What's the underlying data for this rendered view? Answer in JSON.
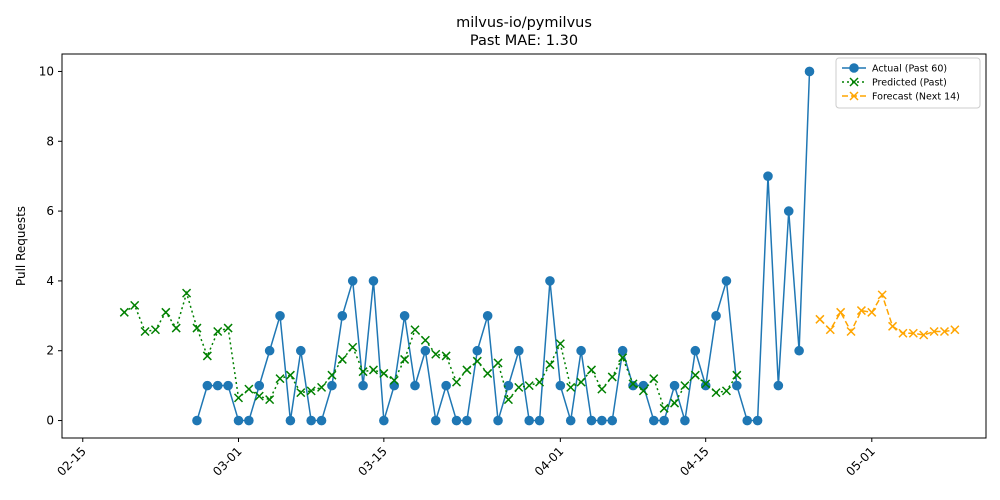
{
  "chart_data": {
    "type": "line",
    "title": "milvus-io/pymilvus",
    "subtitle": "Past MAE: 1.30",
    "xlabel": "",
    "ylabel": "Pull Requests",
    "x_ticks": [
      "2024-02-15",
      "2024-03-01",
      "2024-03-15",
      "2024-04-01",
      "2024-04-15",
      "2024-05-01"
    ],
    "x_tick_labels": [
      "02-15",
      "03-01",
      "03-15",
      "04-01",
      "04-15",
      "05-01"
    ],
    "y_ticks": [
      0,
      2,
      4,
      6,
      8,
      10
    ],
    "xlim": [
      "2024-02-13",
      "2024-05-12"
    ],
    "ylim": [
      -0.5,
      10.5
    ],
    "grid": false,
    "legend_position": "top-right",
    "series": [
      {
        "name": "Actual (Past 60)",
        "color": "#1f77b4",
        "style": "solid",
        "marker": "circle",
        "x": [
          "2024-02-26",
          "2024-02-27",
          "2024-02-28",
          "2024-02-29",
          "2024-03-01",
          "2024-03-02",
          "2024-03-03",
          "2024-03-04",
          "2024-03-05",
          "2024-03-06",
          "2024-03-07",
          "2024-03-08",
          "2024-03-09",
          "2024-03-10",
          "2024-03-11",
          "2024-03-12",
          "2024-03-13",
          "2024-03-14",
          "2024-03-15",
          "2024-03-16",
          "2024-03-17",
          "2024-03-18",
          "2024-03-19",
          "2024-03-20",
          "2024-03-21",
          "2024-03-22",
          "2024-03-23",
          "2024-03-24",
          "2024-03-25",
          "2024-03-26",
          "2024-03-27",
          "2024-03-28",
          "2024-03-29",
          "2024-03-30",
          "2024-03-31",
          "2024-04-01",
          "2024-04-02",
          "2024-04-03",
          "2024-04-04",
          "2024-04-05",
          "2024-04-06",
          "2024-04-07",
          "2024-04-08",
          "2024-04-09",
          "2024-04-10",
          "2024-04-11",
          "2024-04-12",
          "2024-04-13",
          "2024-04-14",
          "2024-04-15",
          "2024-04-16",
          "2024-04-17",
          "2024-04-18",
          "2024-04-19",
          "2024-04-20",
          "2024-04-21",
          "2024-04-22",
          "2024-04-23",
          "2024-04-24",
          "2024-04-25"
        ],
        "values": [
          0,
          1,
          1,
          1,
          0,
          0,
          1,
          2,
          3,
          0,
          2,
          0,
          0,
          1,
          3,
          4,
          1,
          4,
          0,
          1,
          3,
          1,
          2,
          0,
          1,
          0,
          0,
          2,
          3,
          0,
          1,
          2,
          0,
          0,
          4,
          1,
          0,
          2,
          0,
          0,
          0,
          2,
          1,
          1,
          0,
          0,
          1,
          0,
          2,
          1,
          3,
          4,
          1,
          0,
          0,
          7,
          1,
          6,
          2,
          10
        ]
      },
      {
        "name": "Predicted (Past)",
        "color": "#008000",
        "style": "dotted",
        "marker": "x",
        "x": [
          "2024-02-19",
          "2024-02-20",
          "2024-02-21",
          "2024-02-22",
          "2024-02-23",
          "2024-02-24",
          "2024-02-25",
          "2024-02-26",
          "2024-02-27",
          "2024-02-28",
          "2024-02-29",
          "2024-03-01",
          "2024-03-02",
          "2024-03-03",
          "2024-03-04",
          "2024-03-05",
          "2024-03-06",
          "2024-03-07",
          "2024-03-08",
          "2024-03-09",
          "2024-03-10",
          "2024-03-11",
          "2024-03-12",
          "2024-03-13",
          "2024-03-14",
          "2024-03-15",
          "2024-03-16",
          "2024-03-17",
          "2024-03-18",
          "2024-03-19",
          "2024-03-20",
          "2024-03-21",
          "2024-03-22",
          "2024-03-23",
          "2024-03-24",
          "2024-03-25",
          "2024-03-26",
          "2024-03-27",
          "2024-03-28",
          "2024-03-29",
          "2024-03-30",
          "2024-03-31",
          "2024-04-01",
          "2024-04-02",
          "2024-04-03",
          "2024-04-04",
          "2024-04-05",
          "2024-04-06",
          "2024-04-07",
          "2024-04-08",
          "2024-04-09",
          "2024-04-10",
          "2024-04-11",
          "2024-04-12",
          "2024-04-13",
          "2024-04-14",
          "2024-04-15",
          "2024-04-16",
          "2024-04-17",
          "2024-04-18"
        ],
        "values": [
          3.1,
          3.3,
          2.55,
          2.6,
          3.1,
          2.65,
          3.65,
          2.65,
          1.85,
          2.55,
          2.65,
          0.65,
          0.9,
          0.7,
          0.6,
          1.2,
          1.3,
          0.8,
          0.85,
          0.95,
          1.3,
          1.75,
          2.1,
          1.4,
          1.45,
          1.35,
          1.15,
          1.75,
          2.6,
          2.3,
          1.9,
          1.85,
          1.1,
          1.45,
          1.7,
          1.35,
          1.65,
          0.6,
          0.95,
          1.0,
          1.1,
          1.6,
          2.2,
          0.95,
          1.1,
          1.45,
          0.9,
          1.25,
          1.8,
          1.05,
          0.85,
          1.2,
          0.35,
          0.5,
          1.0,
          1.3,
          1.05,
          0.8,
          0.85,
          1.3
        ]
      },
      {
        "name": "Forecast (Next 14)",
        "color": "#ffa500",
        "style": "dashed",
        "marker": "x",
        "x": [
          "2024-04-26",
          "2024-04-27",
          "2024-04-28",
          "2024-04-29",
          "2024-04-30",
          "2024-05-01",
          "2024-05-02",
          "2024-05-03",
          "2024-05-04",
          "2024-05-05",
          "2024-05-06",
          "2024-05-07",
          "2024-05-08",
          "2024-05-09"
        ],
        "values": [
          2.9,
          2.6,
          3.1,
          2.55,
          3.15,
          3.1,
          3.6,
          2.7,
          2.5,
          2.5,
          2.45,
          2.55,
          2.55,
          2.6
        ]
      }
    ]
  }
}
